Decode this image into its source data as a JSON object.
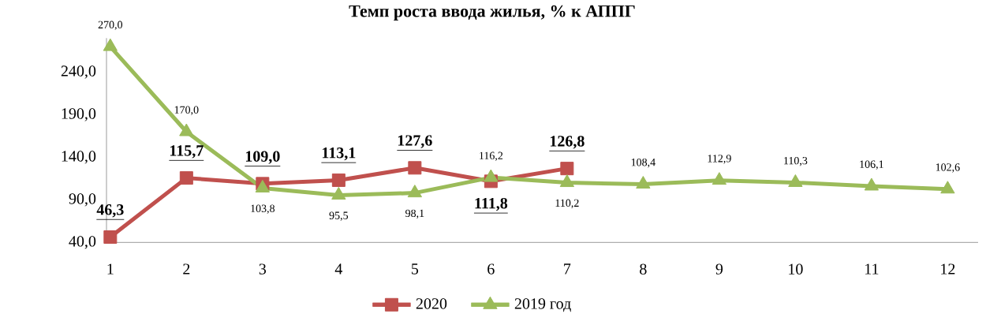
{
  "chart_data": {
    "type": "line",
    "title": "Темп роста ввода жилья, % к АППГ",
    "categories": [
      "1",
      "2",
      "3",
      "4",
      "5",
      "6",
      "7",
      "8",
      "9",
      "10",
      "11",
      "12"
    ],
    "series": [
      {
        "name": "2020",
        "color": "#c0504d",
        "marker": "square",
        "values": [
          46.3,
          115.7,
          109.0,
          113.1,
          127.6,
          111.8,
          126.8,
          null,
          null,
          null,
          null,
          null
        ],
        "value_labels": [
          "46,3",
          "115,7",
          "109,0",
          "113,1",
          "127,6",
          "111,8",
          "126,8",
          null,
          null,
          null,
          null,
          null
        ]
      },
      {
        "name": "2019 год",
        "color": "#9bbb59",
        "marker": "triangle",
        "values": [
          270.0,
          170.0,
          103.8,
          95.5,
          98.1,
          116.2,
          110.2,
          108.4,
          112.9,
          110.3,
          106.1,
          102.6
        ],
        "value_labels": [
          "270,0",
          "170,0",
          "103,8",
          "95,5",
          "98,1",
          "116,2",
          "110,2",
          "108,4",
          "112,9",
          "110,3",
          "106,1",
          "102,6"
        ]
      }
    ],
    "ylim": [
      40,
      280
    ],
    "yticks": [
      {
        "value": 40,
        "label": "40,0"
      },
      {
        "value": 90,
        "label": "90,0"
      },
      {
        "value": 140,
        "label": "140,0"
      },
      {
        "value": 190,
        "label": "190,0"
      },
      {
        "value": 240,
        "label": "240,0"
      }
    ],
    "grid": false,
    "legend": "bottom",
    "line_style": "solid"
  }
}
